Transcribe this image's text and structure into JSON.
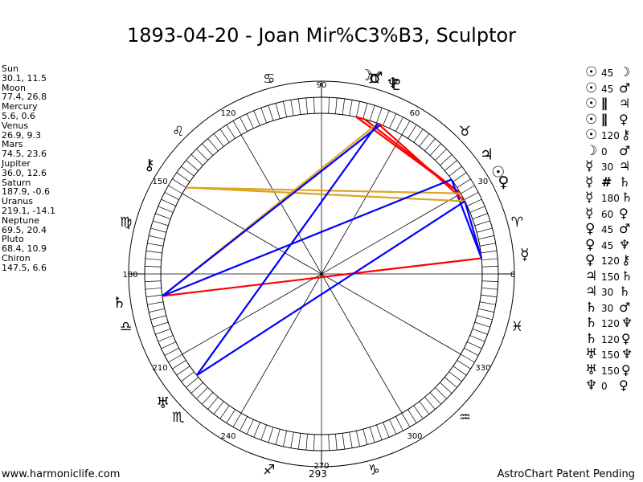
{
  "chart": {
    "title": "1893-04-20 - Joan Mir%C3%B3, Sculptor",
    "footer_left": "www.harmoniclife.com",
    "footer_center": "293",
    "footer_right": "AstroChart Patent Pending"
  },
  "planets": [
    {
      "name": "Sun",
      "coords": "30.1, 11.5"
    },
    {
      "name": "Moon",
      "coords": "77.4, 26.8"
    },
    {
      "name": "Mercury",
      "coords": "5.6, 0.6"
    },
    {
      "name": "Venus",
      "coords": "26.9, 9.3"
    },
    {
      "name": "Mars",
      "coords": "74.5, 23.6"
    },
    {
      "name": "Jupiter",
      "coords": "36.0, 12.6"
    },
    {
      "name": "Saturn",
      "coords": "187.9, -0.6"
    },
    {
      "name": "Uranus",
      "coords": "219.1, -14.1"
    },
    {
      "name": "Neptune",
      "coords": "69.5, 20.4"
    },
    {
      "name": "Pluto",
      "coords": "68.4, 10.9"
    },
    {
      "name": "Chiron",
      "coords": "147.5, 6.6"
    }
  ],
  "aspects": [
    {
      "p1": "☉",
      "aspect": "45",
      "p2": "☽"
    },
    {
      "p1": "☉",
      "aspect": "45",
      "p2": "♂"
    },
    {
      "p1": "☉",
      "aspect": "∥",
      "p2": "♃"
    },
    {
      "p1": "☉",
      "aspect": "∥",
      "p2": "♀"
    },
    {
      "p1": "☉",
      "aspect": "120",
      "p2": "⚷"
    },
    {
      "p1": "☽",
      "aspect": "0",
      "p2": "♂"
    },
    {
      "p1": "☿",
      "aspect": "30",
      "p2": "♃"
    },
    {
      "p1": "☿",
      "aspect": "#",
      "p2": "♄"
    },
    {
      "p1": "☿",
      "aspect": "180",
      "p2": "♄"
    },
    {
      "p1": "☿",
      "aspect": "60",
      "p2": "♀"
    },
    {
      "p1": "♀",
      "aspect": "45",
      "p2": "♂"
    },
    {
      "p1": "♀",
      "aspect": "45",
      "p2": "♆"
    },
    {
      "p1": "♀",
      "aspect": "120",
      "p2": "⚷"
    },
    {
      "p1": "♃",
      "aspect": "150",
      "p2": "♄"
    },
    {
      "p1": "♃",
      "aspect": "30",
      "p2": "♄"
    },
    {
      "p1": "♄",
      "aspect": "30",
      "p2": "♂"
    },
    {
      "p1": "♄",
      "aspect": "120",
      "p2": "♆"
    },
    {
      "p1": "♄",
      "aspect": "120",
      "p2": "♀"
    },
    {
      "p1": "♅",
      "aspect": "150",
      "p2": "♆"
    },
    {
      "p1": "♅",
      "aspect": "150",
      "p2": "♀"
    },
    {
      "p1": "♆",
      "aspect": "0",
      "p2": "♀"
    }
  ],
  "wheel": {
    "degree_labels": [
      "0",
      "30",
      "60",
      "90",
      "120",
      "150",
      "180",
      "210",
      "240",
      "270",
      "300",
      "330"
    ],
    "sign_glyphs": [
      "♈",
      "♉",
      "♊",
      "♋",
      "♌",
      "♍",
      "♎",
      "♏",
      "♐",
      "♑",
      "♒",
      "♓"
    ],
    "planet_glyphs": [
      {
        "name": "Sun",
        "glyph": "☉",
        "lon": 30.1
      },
      {
        "name": "Moon",
        "glyph": "☽",
        "lon": 77.4
      },
      {
        "name": "Mercury",
        "glyph": "☿",
        "lon": 5.6
      },
      {
        "name": "Venus",
        "glyph": "♀",
        "lon": 26.9
      },
      {
        "name": "Mars",
        "glyph": "♂",
        "lon": 74.5
      },
      {
        "name": "Jupiter",
        "glyph": "♃",
        "lon": 36.0
      },
      {
        "name": "Saturn",
        "glyph": "♄",
        "lon": 187.9
      },
      {
        "name": "Uranus",
        "glyph": "♅",
        "lon": 219.1
      },
      {
        "name": "Neptune",
        "glyph": "♆",
        "lon": 69.5
      },
      {
        "name": "Pluto",
        "glyph": "♇",
        "lon": 68.4
      },
      {
        "name": "Chiron",
        "glyph": "⚷",
        "lon": 147.5
      }
    ],
    "aspect_lines": [
      {
        "a": "Sun",
        "b": "Moon",
        "color": "#ff0000"
      },
      {
        "a": "Sun",
        "b": "Mars",
        "color": "#ff0000"
      },
      {
        "a": "Moon",
        "b": "Mars",
        "color": "#ff0000"
      },
      {
        "a": "Mercury",
        "b": "Saturn",
        "color": "#ff0000"
      },
      {
        "a": "Mercury",
        "b": "Jupiter",
        "color": "#0000ff"
      },
      {
        "a": "Mercury",
        "b": "Venus",
        "color": "#0000ff"
      },
      {
        "a": "Venus",
        "b": "Neptune",
        "color": "#ff0000"
      },
      {
        "a": "Venus",
        "b": "Chiron",
        "color": "#daa520"
      },
      {
        "a": "Venus",
        "b": "Uranus",
        "color": "#0000ff"
      },
      {
        "a": "Sun",
        "b": "Chiron",
        "color": "#daa520"
      },
      {
        "a": "Jupiter",
        "b": "Saturn",
        "color": "#0000ff"
      },
      {
        "a": "Saturn",
        "b": "Neptune",
        "color": "#daa520"
      },
      {
        "a": "Saturn",
        "b": "Pluto",
        "color": "#0000ff"
      },
      {
        "a": "Uranus",
        "b": "Neptune",
        "color": "#0000ff"
      },
      {
        "a": "Neptune",
        "b": "Pluto",
        "color": "#ff0000"
      }
    ]
  }
}
